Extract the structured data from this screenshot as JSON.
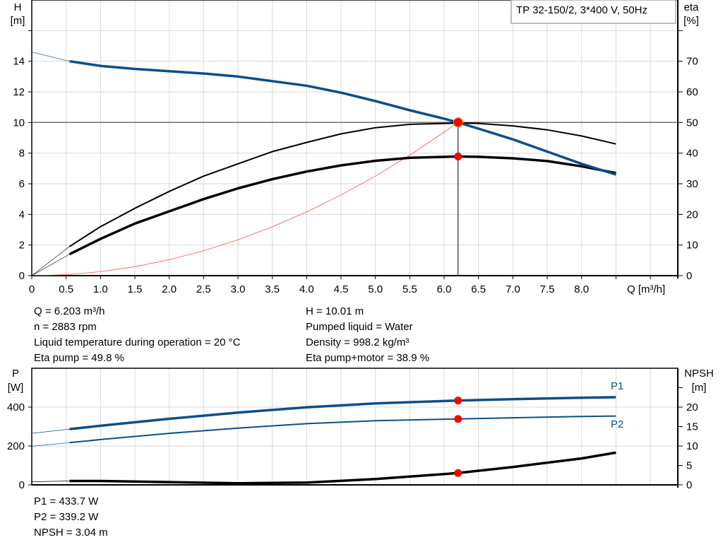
{
  "title": "TP 32-150/2, 3*400 V, 50Hz",
  "colors": {
    "head": "#0b4f8a",
    "power": "#0b4f8a",
    "efficiency": "#000000",
    "npsh": "#000000",
    "system": "#ff4d4d",
    "duty_point": "#ff0000",
    "grid": "#d9d9d9"
  },
  "chart_data": [
    {
      "type": "line",
      "title": "TP 32-150/2, 3*400 V, 50Hz",
      "xlabel": "Q [m³/h]",
      "ylabel_left": "H\n[m]",
      "ylabel_left_lines": [
        "H",
        "[m]"
      ],
      "ylabel_right_lines": [
        "eta",
        "[%]"
      ],
      "xlim": [
        0,
        9.4
      ],
      "ylim_left": [
        0,
        18
      ],
      "ylim_right": [
        0,
        90
      ],
      "xticks": [
        "0",
        "0.5",
        "1.0",
        "1.5",
        "2.0",
        "2.5",
        "3.0",
        "3.5",
        "4.0",
        "4.5",
        "5.0",
        "5.5",
        "6.0",
        "6.5",
        "7.0",
        "7.5",
        "8.0"
      ],
      "xtick_values": [
        0,
        0.5,
        1,
        1.5,
        2,
        2.5,
        3,
        3.5,
        4,
        4.5,
        5,
        5.5,
        6,
        6.5,
        7,
        7.5,
        8
      ],
      "yticks_left": [
        "0",
        "2",
        "4",
        "6",
        "8",
        "10",
        "12",
        "14"
      ],
      "yticks_right": [
        "0",
        "10",
        "20",
        "30",
        "40",
        "50",
        "60",
        "70"
      ],
      "grid": true,
      "series": [
        {
          "key": "H",
          "axis": "left",
          "x": [
            0,
            0.55,
            1,
            1.5,
            2,
            2.5,
            3,
            3.5,
            4,
            4.5,
            5,
            5.5,
            6,
            6.2,
            6.5,
            7,
            7.5,
            8,
            8.5
          ],
          "y": [
            14.6,
            14.0,
            13.7,
            13.5,
            13.35,
            13.2,
            13.0,
            12.7,
            12.4,
            11.95,
            11.4,
            10.8,
            10.25,
            10.0,
            9.6,
            8.9,
            8.1,
            7.3,
            6.6
          ]
        },
        {
          "key": "eta_pump",
          "axis": "right",
          "x": [
            0,
            0.55,
            1,
            1.5,
            2,
            2.5,
            3,
            3.5,
            4,
            4.5,
            5,
            5.5,
            6.2,
            6.5,
            7,
            7.5,
            8,
            8.5
          ],
          "y": [
            0,
            9.5,
            16,
            22,
            27.5,
            32.5,
            36.5,
            40.5,
            43.5,
            46.3,
            48.3,
            49.4,
            49.8,
            49.7,
            48.9,
            47.6,
            45.6,
            43
          ]
        },
        {
          "key": "eta_total",
          "axis": "right",
          "x": [
            0,
            0.55,
            1,
            1.5,
            2,
            2.5,
            3,
            3.5,
            4,
            4.5,
            5,
            5.5,
            6.2,
            6.5,
            7,
            7.5,
            8,
            8.5
          ],
          "y": [
            0,
            7,
            12,
            17,
            21,
            25,
            28.5,
            31.5,
            34,
            36,
            37.5,
            38.5,
            38.9,
            38.8,
            38.3,
            37.4,
            35.7,
            33.5
          ]
        },
        {
          "key": "system",
          "axis": "left",
          "x": [
            0,
            0.5,
            1,
            1.5,
            2,
            2.5,
            3,
            3.5,
            4,
            4.5,
            5,
            5.5,
            6,
            6.203
          ],
          "y": [
            0,
            0.065,
            0.26,
            0.585,
            1.04,
            1.63,
            2.34,
            3.19,
            4.16,
            5.27,
            6.5,
            7.87,
            9.37,
            10.01
          ]
        }
      ],
      "duty_point": {
        "Q": 6.203,
        "H": 10.01,
        "eta_pump": 49.8,
        "eta_total": 38.9
      }
    },
    {
      "type": "line",
      "xlim": [
        0,
        9.4
      ],
      "ylim_left": [
        0,
        600
      ],
      "ylim_right": [
        0,
        30
      ],
      "ylabel_left_lines": [
        "P",
        "[W]"
      ],
      "ylabel_right_lines": [
        "NPSH",
        "[m]"
      ],
      "yticks_left": [
        "0",
        "200",
        "400"
      ],
      "yticks_right": [
        "0",
        "5",
        "10",
        "15",
        "20"
      ],
      "grid": true,
      "series": [
        {
          "key": "P1",
          "name": "P1",
          "axis": "left",
          "x": [
            0,
            0.55,
            1,
            2,
            3,
            4,
            5,
            6.2,
            7,
            8,
            8.5
          ],
          "y": [
            265,
            287,
            304,
            340,
            372,
            399,
            419,
            433.7,
            441,
            448,
            451
          ]
        },
        {
          "key": "P2",
          "name": "P2",
          "axis": "left",
          "x": [
            0,
            0.55,
            1,
            2,
            3,
            4,
            5,
            6.2,
            7,
            8,
            8.5
          ],
          "y": [
            198,
            217,
            233,
            265,
            292,
            315,
            330,
            339.2,
            345,
            352,
            354
          ]
        },
        {
          "key": "NPSH",
          "axis": "right",
          "x": [
            0,
            0.55,
            1,
            2,
            3,
            4,
            5,
            6.2,
            7,
            8,
            8.5
          ],
          "y": [
            0.8,
            1.0,
            1.0,
            0.7,
            0.4,
            0.6,
            1.5,
            3.04,
            4.6,
            6.8,
            8.3
          ]
        }
      ],
      "duty_point": {
        "Q": 6.203,
        "P1": 433.7,
        "P2": 339.2,
        "NPSH": 3.04
      }
    }
  ],
  "info": {
    "left": [
      "Q = 6.203 m³/h",
      "n = 2883 rpm",
      "Liquid temperature during operation = 20 °C",
      "Eta pump = 49.8 %"
    ],
    "right": [
      "H = 10.01 m",
      "Pumped liquid = Water",
      "Density = 998.2 kg/m³",
      "Eta pump+motor = 38.9 %"
    ],
    "bottom": [
      "P1 = 433.7 W",
      "P2 = 339.2 W",
      "NPSH = 3.04 m"
    ]
  }
}
